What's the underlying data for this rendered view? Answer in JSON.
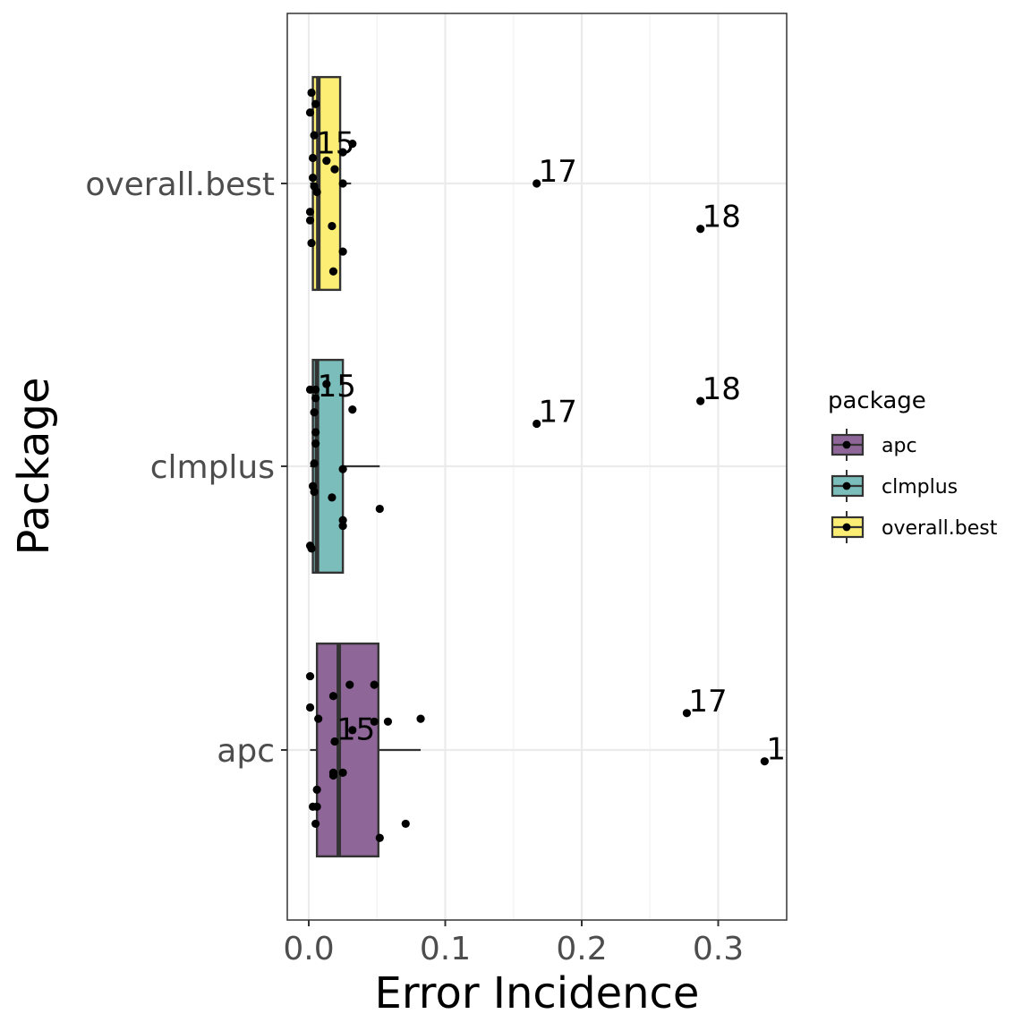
{
  "chart_data": {
    "type": "boxplot",
    "title": "",
    "xlabel": "Error Incidence",
    "ylabel": "Package",
    "xlim": [
      -0.016,
      0.35
    ],
    "x_ticks": [
      0.0,
      0.1,
      0.2,
      0.3
    ],
    "x_tick_labels": [
      "0.0",
      "0.1",
      "0.2",
      "0.3"
    ],
    "categories": [
      "apc",
      "clmplus",
      "overall.best"
    ],
    "grid": true,
    "legend": {
      "title": "package",
      "position": "right",
      "entries": [
        "apc",
        "clmplus",
        "overall.best"
      ]
    },
    "series": [
      {
        "name": "apc",
        "color": "#8F6698",
        "box": {
          "whisker_low": 0.001,
          "q1": 0.006,
          "median": 0.022,
          "q3": 0.051,
          "whisker_high": 0.082
        },
        "points": [
          {
            "x": 0.001,
            "jitter": 0.26
          },
          {
            "x": 0.018,
            "jitter": 0.19
          },
          {
            "x": 0.03,
            "jitter": 0.23
          },
          {
            "x": 0.048,
            "jitter": 0.23
          },
          {
            "x": 0.001,
            "jitter": 0.15
          },
          {
            "x": 0.007,
            "jitter": 0.11
          },
          {
            "x": 0.048,
            "jitter": 0.1
          },
          {
            "x": 0.058,
            "jitter": 0.1
          },
          {
            "x": 0.082,
            "jitter": 0.11
          },
          {
            "x": 0.032,
            "jitter": 0.07
          },
          {
            "x": 0.019,
            "jitter": 0.03
          },
          {
            "x": 0.018,
            "jitter": -0.08
          },
          {
            "x": 0.018,
            "jitter": -0.09
          },
          {
            "x": 0.025,
            "jitter": -0.08
          },
          {
            "x": 0.006,
            "jitter": -0.14
          },
          {
            "x": 0.003,
            "jitter": -0.2
          },
          {
            "x": 0.006,
            "jitter": -0.2
          },
          {
            "x": 0.005,
            "jitter": -0.26
          },
          {
            "x": 0.071,
            "jitter": -0.26
          },
          {
            "x": 0.052,
            "jitter": -0.31
          },
          {
            "x": 0.277,
            "jitter": 0.13
          },
          {
            "x": 0.334,
            "jitter": -0.04
          }
        ],
        "labels": [
          {
            "text": "15",
            "x": 0.019,
            "jitter": 0.03
          },
          {
            "text": "17",
            "x": 0.277,
            "jitter": 0.13
          },
          {
            "text": "1",
            "x": 0.334,
            "jitter": -0.04
          }
        ]
      },
      {
        "name": "clmplus",
        "color": "#7BBDBA",
        "box": {
          "whisker_low": 0.001,
          "q1": 0.003,
          "median": 0.006,
          "q3": 0.025,
          "whisker_high": 0.052
        },
        "points": [
          {
            "x": 0.013,
            "jitter": 0.29
          },
          {
            "x": 0.001,
            "jitter": 0.27
          },
          {
            "x": 0.005,
            "jitter": 0.27
          },
          {
            "x": 0.005,
            "jitter": 0.24
          },
          {
            "x": 0.032,
            "jitter": 0.2
          },
          {
            "x": 0.004,
            "jitter": 0.19
          },
          {
            "x": 0.005,
            "jitter": 0.12
          },
          {
            "x": 0.005,
            "jitter": 0.08
          },
          {
            "x": 0.004,
            "jitter": 0.01
          },
          {
            "x": 0.025,
            "jitter": -0.01
          },
          {
            "x": 0.003,
            "jitter": -0.07
          },
          {
            "x": 0.004,
            "jitter": -0.09
          },
          {
            "x": 0.017,
            "jitter": -0.11
          },
          {
            "x": 0.052,
            "jitter": -0.15
          },
          {
            "x": 0.025,
            "jitter": -0.19
          },
          {
            "x": 0.025,
            "jitter": -0.21
          },
          {
            "x": 0.001,
            "jitter": -0.28
          },
          {
            "x": 0.002,
            "jitter": -0.29
          },
          {
            "x": 0.167,
            "jitter": 0.15
          },
          {
            "x": 0.287,
            "jitter": 0.23
          }
        ],
        "labels": [
          {
            "text": "15",
            "x": 0.005,
            "jitter": 0.24
          },
          {
            "text": "17",
            "x": 0.167,
            "jitter": 0.15
          },
          {
            "text": "18",
            "x": 0.287,
            "jitter": 0.23
          }
        ]
      },
      {
        "name": "overall.best",
        "color": "#FCEE74",
        "box": {
          "whisker_low": 0.001,
          "q1": 0.003,
          "median": 0.007,
          "q3": 0.023,
          "whisker_high": 0.031
        },
        "points": [
          {
            "x": 0.002,
            "jitter": 0.32
          },
          {
            "x": 0.005,
            "jitter": 0.28
          },
          {
            "x": 0.001,
            "jitter": 0.25
          },
          {
            "x": 0.004,
            "jitter": 0.17
          },
          {
            "x": 0.032,
            "jitter": 0.14
          },
          {
            "x": 0.025,
            "jitter": 0.11
          },
          {
            "x": 0.003,
            "jitter": 0.09
          },
          {
            "x": 0.013,
            "jitter": 0.08
          },
          {
            "x": 0.019,
            "jitter": 0.05
          },
          {
            "x": 0.003,
            "jitter": 0.02
          },
          {
            "x": 0.025,
            "jitter": -0.0
          },
          {
            "x": 0.004,
            "jitter": -0.01
          },
          {
            "x": 0.006,
            "jitter": -0.03
          },
          {
            "x": 0.001,
            "jitter": -0.1
          },
          {
            "x": 0.001,
            "jitter": -0.13
          },
          {
            "x": 0.017,
            "jitter": -0.15
          },
          {
            "x": 0.002,
            "jitter": -0.21
          },
          {
            "x": 0.025,
            "jitter": -0.24
          },
          {
            "x": 0.018,
            "jitter": -0.31
          },
          {
            "x": 0.167,
            "jitter": 0.0
          },
          {
            "x": 0.287,
            "jitter": -0.16
          }
        ],
        "labels": [
          {
            "text": "15",
            "x": 0.004,
            "jitter": 0.1
          },
          {
            "text": "17",
            "x": 0.167,
            "jitter": 0.0
          },
          {
            "text": "18",
            "x": 0.287,
            "jitter": -0.16
          }
        ]
      }
    ]
  }
}
